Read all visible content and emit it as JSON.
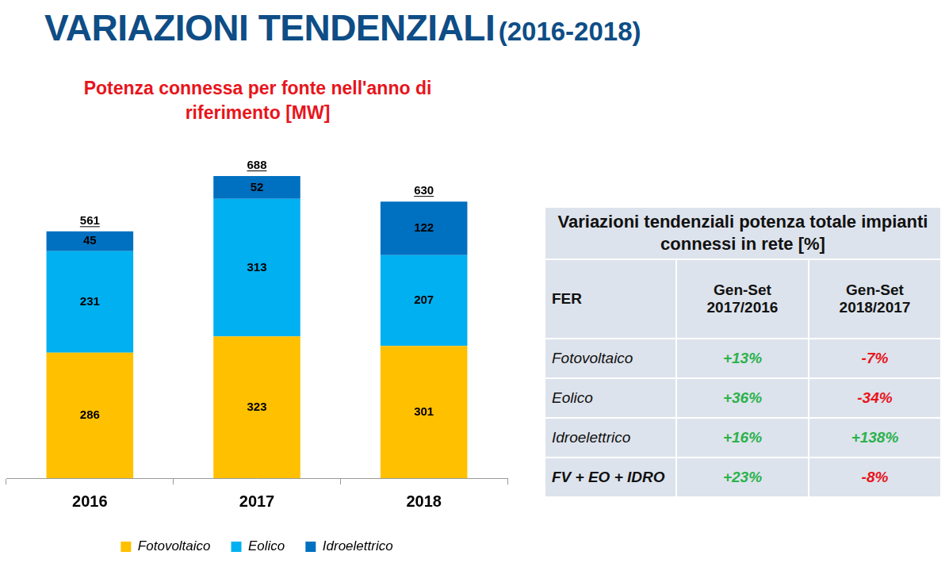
{
  "header": {
    "title": "VARIAZIONI TENDENZIALI",
    "subtitle": "(2016-2018)"
  },
  "chart_data": {
    "type": "bar",
    "title": "Potenza connessa per fonte nell'anno di riferimento [MW]",
    "categories": [
      "2016",
      "2017",
      "2018"
    ],
    "series": [
      {
        "name": "Fotovoltaico",
        "color": "#FFC000",
        "values": [
          286,
          323,
          301
        ]
      },
      {
        "name": "Eolico",
        "color": "#00B0F0",
        "values": [
          231,
          313,
          207
        ]
      },
      {
        "name": "Idroelettrico",
        "color": "#0070C0",
        "values": [
          45,
          52,
          122
        ]
      }
    ],
    "totals": [
      561,
      688,
      630
    ],
    "stacked": true,
    "data_labels": true,
    "tick_labels": "x",
    "grid": false,
    "legend": "bottom",
    "ylim": [
      0,
      800
    ]
  },
  "table": {
    "title": "Variazioni tendenziali potenza totale impianti connessi in rete [%]",
    "columns": [
      [
        "FER"
      ],
      [
        "Gen-Set",
        "2017/2016"
      ],
      [
        "Gen-Set",
        "2018/2017"
      ]
    ],
    "rows": [
      [
        "Fotovoltaico",
        "+13%",
        "-7%"
      ],
      [
        "Eolico",
        "+36%",
        "-34%"
      ],
      [
        "Idroelettrico",
        "+16%",
        "+138%"
      ],
      [
        "FV + EO + IDRO",
        "+23%",
        "-8%"
      ]
    ]
  }
}
